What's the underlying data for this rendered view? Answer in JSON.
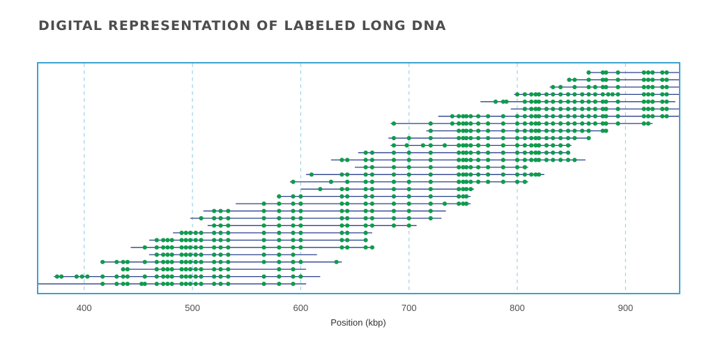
{
  "chart_data": {
    "type": "scatter",
    "title": "DIGITAL REPRESENTATION OF LABELED LONG DNA",
    "xlabel": "Position (kbp)",
    "ylabel": "",
    "xlim": [
      357,
      950
    ],
    "xticks": [
      400,
      500,
      600,
      700,
      800,
      900
    ],
    "grid": "vertical dashed lines at ticks",
    "colors": {
      "molecule": "#2b3f8c",
      "label": "#0f9b4e",
      "frame": "#3aa3cf",
      "grid": "#9cd3e6"
    },
    "molecules": [
      {
        "start": 864,
        "end": 950,
        "labels": [
          866,
          879,
          882,
          893,
          917,
          921,
          925,
          934,
          938
        ]
      },
      {
        "start": 846,
        "end": 950,
        "labels": [
          848,
          853,
          866,
          879,
          882,
          893,
          917,
          921,
          925,
          934,
          938
        ]
      },
      {
        "start": 830,
        "end": 950,
        "labels": [
          833,
          840,
          853,
          866,
          872,
          879,
          882,
          893,
          917,
          921,
          925,
          934,
          938
        ]
      },
      {
        "start": 797,
        "end": 950,
        "labels": [
          800,
          807,
          813,
          817,
          820,
          827,
          833,
          840,
          847,
          853,
          860,
          866,
          872,
          879,
          884,
          888,
          893,
          917,
          921,
          925,
          934,
          938
        ]
      },
      {
        "start": 766,
        "end": 946,
        "labels": [
          780,
          787,
          790,
          807,
          813,
          817,
          820,
          827,
          833,
          840,
          847,
          853,
          860,
          866,
          872,
          879,
          882,
          893,
          917,
          921,
          925,
          934,
          938
        ]
      },
      {
        "start": 794,
        "end": 950,
        "labels": [
          807,
          813,
          817,
          820,
          827,
          833,
          840,
          847,
          853,
          860,
          866,
          872,
          879,
          882,
          893,
          917,
          921,
          925,
          934,
          938
        ]
      },
      {
        "start": 727,
        "end": 950,
        "labels": [
          740,
          746,
          750,
          753,
          757,
          764,
          773,
          787,
          800,
          807,
          813,
          817,
          820,
          827,
          833,
          840,
          847,
          853,
          860,
          866,
          872,
          879,
          882,
          893,
          917,
          921,
          925,
          934,
          938
        ]
      },
      {
        "start": 683,
        "end": 925,
        "labels": [
          686,
          720,
          740,
          746,
          750,
          753,
          757,
          764,
          773,
          787,
          800,
          807,
          813,
          817,
          820,
          827,
          833,
          840,
          847,
          853,
          860,
          866,
          872,
          879,
          882,
          893,
          917,
          921
        ]
      },
      {
        "start": 716,
        "end": 882,
        "labels": [
          720,
          746,
          750,
          753,
          757,
          764,
          773,
          787,
          800,
          807,
          813,
          817,
          820,
          827,
          833,
          840,
          847,
          853,
          860,
          866,
          879,
          882
        ]
      },
      {
        "start": 681,
        "end": 866,
        "labels": [
          686,
          700,
          720,
          746,
          750,
          753,
          757,
          764,
          773,
          787,
          800,
          807,
          813,
          817,
          820,
          827,
          833,
          840,
          847,
          853,
          866
        ]
      },
      {
        "start": 683,
        "end": 850,
        "labels": [
          686,
          698,
          713,
          720,
          733,
          746,
          750,
          753,
          757,
          764,
          773,
          787,
          800,
          807,
          813,
          817,
          820,
          827,
          833,
          840,
          847
        ]
      },
      {
        "start": 653,
        "end": 848,
        "labels": [
          660,
          666,
          686,
          700,
          720,
          746,
          750,
          753,
          757,
          764,
          773,
          787,
          800,
          807,
          813,
          817,
          820,
          827,
          833,
          840,
          847
        ]
      },
      {
        "start": 628,
        "end": 863,
        "labels": [
          638,
          643,
          660,
          666,
          686,
          700,
          720,
          746,
          750,
          753,
          757,
          764,
          773,
          787,
          800,
          807,
          813,
          817,
          820,
          827,
          833,
          840,
          847,
          853
        ]
      },
      {
        "start": 650,
        "end": 810,
        "labels": [
          660,
          666,
          686,
          700,
          720,
          746,
          750,
          753,
          757,
          764,
          773,
          787,
          800,
          807
        ]
      },
      {
        "start": 605,
        "end": 825,
        "labels": [
          610,
          638,
          643,
          660,
          666,
          686,
          700,
          720,
          746,
          750,
          753,
          757,
          764,
          773,
          787,
          800,
          807,
          813,
          817,
          820
        ]
      },
      {
        "start": 590,
        "end": 810,
        "labels": [
          593,
          628,
          643,
          660,
          666,
          686,
          700,
          720,
          746,
          750,
          753,
          757,
          764,
          773,
          787,
          800,
          807
        ]
      },
      {
        "start": 600,
        "end": 760,
        "labels": [
          618,
          638,
          643,
          660,
          666,
          686,
          700,
          720,
          746,
          750,
          753,
          757
        ]
      },
      {
        "start": 578,
        "end": 757,
        "labels": [
          580,
          593,
          600,
          638,
          643,
          660,
          666,
          686,
          700,
          720,
          746,
          750,
          753
        ]
      },
      {
        "start": 540,
        "end": 757,
        "labels": [
          566,
          580,
          593,
          600,
          638,
          643,
          660,
          666,
          686,
          700,
          720,
          733,
          746,
          750,
          753
        ]
      },
      {
        "start": 510,
        "end": 734,
        "labels": [
          520,
          526,
          533,
          566,
          580,
          593,
          600,
          638,
          643,
          660,
          666,
          686,
          700,
          720
        ]
      },
      {
        "start": 498,
        "end": 730,
        "labels": [
          508,
          520,
          526,
          533,
          566,
          580,
          593,
          600,
          638,
          643,
          660,
          666,
          686,
          700,
          720
        ]
      },
      {
        "start": 514,
        "end": 707,
        "labels": [
          520,
          526,
          533,
          566,
          580,
          593,
          600,
          638,
          643,
          660,
          666,
          686,
          700
        ]
      },
      {
        "start": 482,
        "end": 666,
        "labels": [
          490,
          494,
          498,
          503,
          508,
          520,
          526,
          533,
          566,
          580,
          593,
          600,
          638,
          643,
          660
        ]
      },
      {
        "start": 460,
        "end": 660,
        "labels": [
          467,
          473,
          477,
          481,
          490,
          494,
          498,
          503,
          508,
          520,
          526,
          533,
          566,
          580,
          593,
          600,
          638,
          643,
          660
        ]
      },
      {
        "start": 443,
        "end": 668,
        "labels": [
          456,
          467,
          473,
          477,
          481,
          490,
          494,
          498,
          503,
          508,
          520,
          526,
          533,
          566,
          580,
          593,
          600,
          638,
          643,
          660,
          666
        ]
      },
      {
        "start": 460,
        "end": 615,
        "labels": [
          467,
          473,
          477,
          481,
          490,
          494,
          498,
          503,
          508,
          520,
          526,
          533,
          566,
          580,
          593
        ]
      },
      {
        "start": 415,
        "end": 638,
        "labels": [
          417,
          430,
          436,
          440,
          456,
          467,
          473,
          477,
          481,
          490,
          494,
          498,
          503,
          508,
          520,
          526,
          533,
          566,
          580,
          593,
          600,
          633
        ]
      },
      {
        "start": 434,
        "end": 605,
        "labels": [
          436,
          440,
          467,
          473,
          477,
          481,
          490,
          494,
          498,
          503,
          508,
          520,
          526,
          533,
          580,
          593
        ]
      },
      {
        "start": 372,
        "end": 618,
        "labels": [
          375,
          379,
          393,
          398,
          403,
          417,
          430,
          436,
          440,
          456,
          467,
          473,
          477,
          481,
          490,
          494,
          498,
          503,
          508,
          520,
          526,
          533,
          566,
          580,
          593,
          600
        ]
      },
      {
        "start": 357,
        "end": 605,
        "labels": [
          417,
          430,
          436,
          440,
          453,
          456,
          467,
          473,
          477,
          481,
          490,
          494,
          498,
          503,
          508,
          520,
          526,
          533,
          566,
          580,
          593
        ]
      }
    ]
  }
}
